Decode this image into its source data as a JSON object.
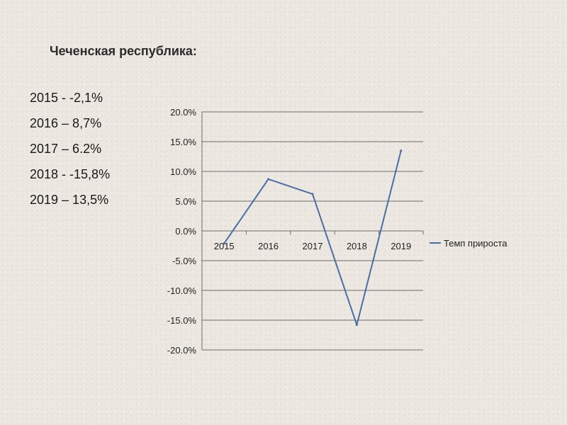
{
  "slide": {
    "title": "Чеченская республика:",
    "lines": [
      "2015 - -2,1%",
      "2016 – 8,7%",
      "2017 – 6.2%",
      "2018 - -15,8%",
      "2019 – 13,5%"
    ]
  },
  "chart_data": {
    "type": "line",
    "x": [
      "2015",
      "2016",
      "2017",
      "2018",
      "2019"
    ],
    "series": [
      {
        "name": "Темп прироста",
        "values": [
          -2.1,
          8.7,
          6.2,
          -15.8,
          13.5
        ],
        "color": "#4a6ea4"
      }
    ],
    "ylim": [
      -20,
      20
    ],
    "yticks": [
      20,
      15,
      10,
      5,
      0,
      -5,
      -10,
      -15,
      -20
    ],
    "ytick_labels": [
      "20.0%",
      "15.0%",
      "10.0%",
      "5.0%",
      "0.0%",
      "-5.0%",
      "-10.0%",
      "-15.0%",
      "-20.0%"
    ],
    "grid": true,
    "legend": "right",
    "title": "",
    "xlabel": "",
    "ylabel": ""
  }
}
